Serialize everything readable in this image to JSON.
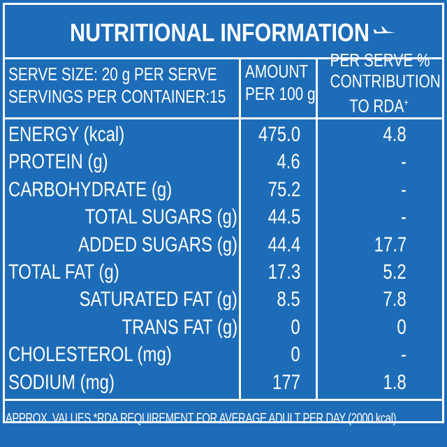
{
  "title": "NUTRITIONAL INFORMATION",
  "header": {
    "serve_size": "SERVE SIZE: 20 g PER SERVE",
    "servings": "SERVINGS PER CONTAINER:15",
    "amount_line1": "AMOUNT",
    "amount_line2": "PER 100 g",
    "rda_line1": "PER SERVE %",
    "rda_line2": "CONTRIBUTION",
    "rda_line3": "TO RDA",
    "rda_mark": "+"
  },
  "rows": [
    [
      "ENERGY (kcal)",
      "475.0",
      "4.8"
    ],
    [
      "PROTEIN (g)",
      "4.6",
      "-"
    ],
    [
      "CARBOHYDRATE (g)",
      "75.2",
      "-"
    ],
    [
      "TOTAL SUGARS (g)",
      "44.5",
      "-"
    ],
    [
      "ADDED SUGARS (g)",
      "44.4",
      "17.7"
    ],
    [
      "TOTAL FAT (g)",
      "17.3",
      "5.2"
    ],
    [
      "SATURATED FAT (g)",
      "8.5",
      "7.8"
    ],
    [
      "TRANS FAT (g)",
      "0",
      "0"
    ],
    [
      "CHOLESTEROL (mg)",
      "0",
      "-"
    ],
    [
      "SODIUM (mg)",
      "177",
      "1.8"
    ]
  ],
  "footer": "APPROX. VALUES *RDA REQUIREMENT FOR AVERAGE ADULT PER DAY (2000 kcal)"
}
